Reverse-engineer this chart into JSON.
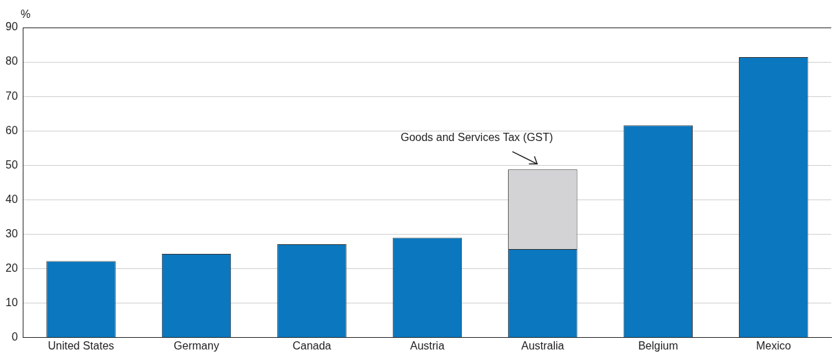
{
  "chart_data": {
    "type": "bar",
    "stacked": true,
    "ylabel": "%",
    "categories": [
      "United States",
      "Germany",
      "Canada",
      "Austria",
      "Australia",
      "Belgium",
      "Mexico"
    ],
    "series": [
      {
        "color": "#0a77bf",
        "values": [
          22.2,
          24.3,
          27.1,
          29.0,
          25.7,
          61.6,
          81.4
        ]
      },
      {
        "color": "#d3d3d5",
        "values": [
          null,
          null,
          null,
          null,
          23.1,
          null,
          null
        ]
      }
    ],
    "ylim": [
      0,
      90
    ],
    "yticks": [
      0,
      10,
      20,
      30,
      40,
      50,
      60,
      70,
      80,
      90
    ],
    "grid": "y",
    "legend": false,
    "annotations": [
      {
        "text": "Goods and Services Tax (GST)",
        "x": "Australia",
        "y": 48.8
      }
    ]
  }
}
